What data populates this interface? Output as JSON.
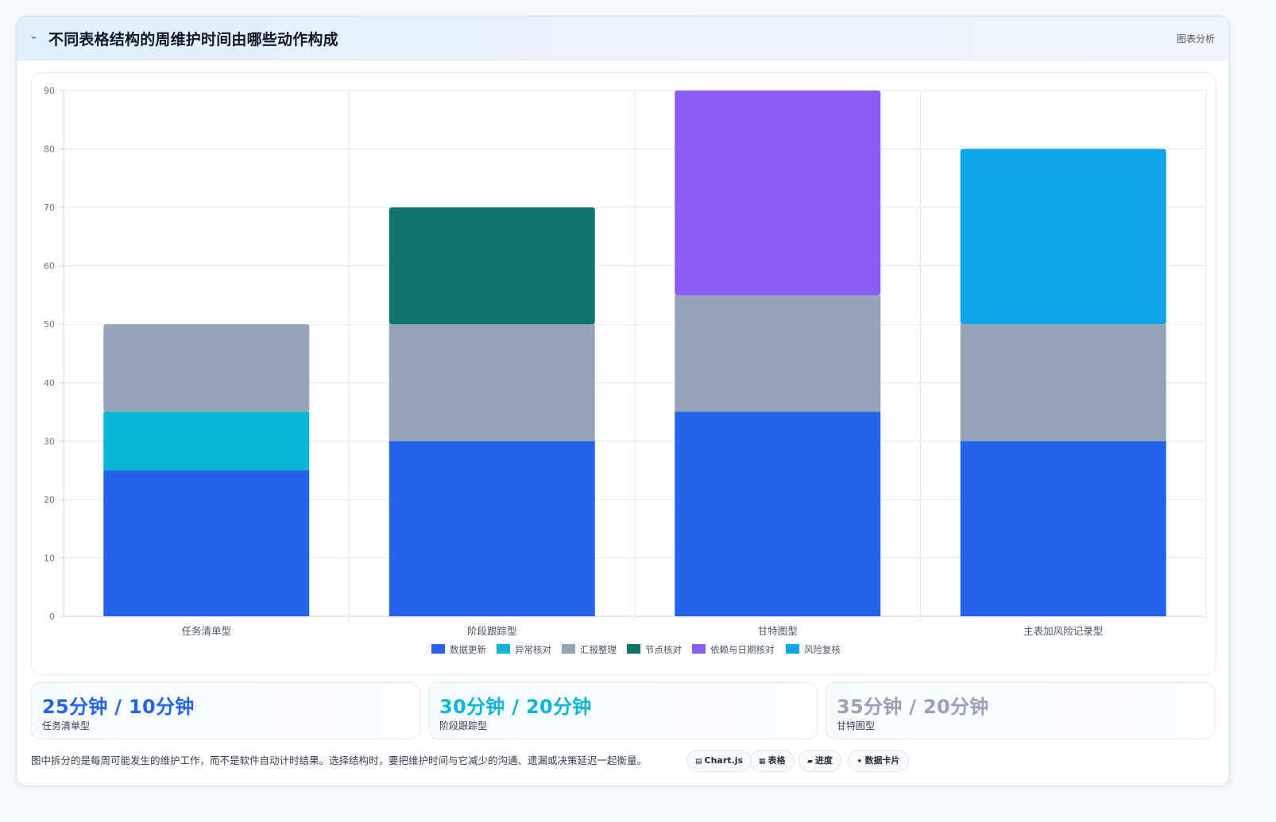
{
  "header": {
    "title": "不同表格结构的周维护时间由哪些动作构成",
    "badge": "图表分析"
  },
  "chart_data": {
    "type": "bar",
    "stacked": true,
    "categories": [
      "任务清单型",
      "阶段跟踪型",
      "甘特图型",
      "主表加风险记录型"
    ],
    "series": [
      {
        "name": "数据更新",
        "color": "#2563eb",
        "values": [
          25,
          30,
          35,
          30
        ]
      },
      {
        "name": "异常核对",
        "color": "#06b6d4",
        "values": [
          10,
          0,
          0,
          0
        ]
      },
      {
        "name": "汇报整理",
        "color": "#94a3b8",
        "values": [
          15,
          20,
          20,
          20
        ]
      },
      {
        "name": "节点核对",
        "color": "#0f766e",
        "values": [
          0,
          20,
          0,
          0
        ]
      },
      {
        "name": "依赖与日期核对",
        "color": "#8b5cf6",
        "values": [
          0,
          0,
          35,
          0
        ]
      },
      {
        "name": "风险复核",
        "color": "#0ea5e9",
        "values": [
          0,
          0,
          0,
          30
        ]
      }
    ],
    "ylim": [
      0,
      90
    ],
    "yticks": [
      0,
      10,
      20,
      30,
      40,
      50,
      60,
      70,
      80,
      90
    ],
    "legend": "bottom",
    "grid": true
  },
  "stats": [
    {
      "value": "25分钟 / 10分钟",
      "label": "任务清单型",
      "color": "#2563eb"
    },
    {
      "value": "30分钟 / 20分钟",
      "label": "阶段跟踪型",
      "color": "#06b6d4"
    },
    {
      "value": "35分钟 / 20分钟",
      "label": "甘特图型",
      "color": "#94a3b8"
    }
  ],
  "footnote": "图中拆分的是每周可能发生的维护工作，而不是软件自动计时结果。选择结构时，要把维护时间与它减少的沟通、遗漏或决策延迟一起衡量。",
  "tags": [
    {
      "icon": "▤",
      "label": "Chart.js"
    },
    {
      "icon": "▦",
      "label": "表格"
    },
    {
      "icon": "▰",
      "label": "进度"
    },
    {
      "icon": "✦",
      "label": "数据卡片"
    }
  ]
}
